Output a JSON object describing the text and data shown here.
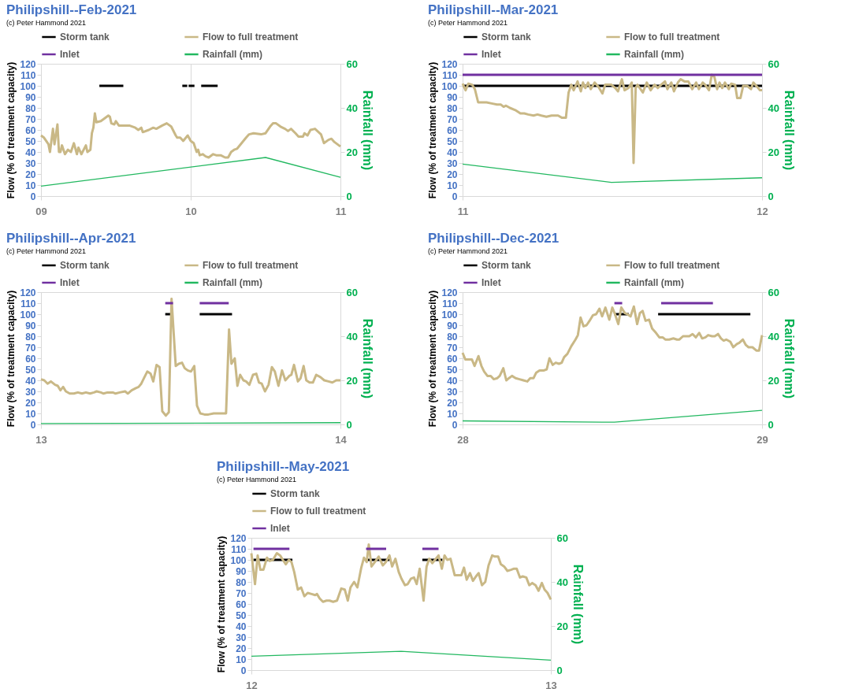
{
  "chart_data": [
    {
      "type": "line",
      "title": "Philipshill--Feb-2021",
      "annotations": [
        "(c) Peter Hammond 2021"
      ],
      "ylabel": "Flow (% of treatment capacity)",
      "y2label": "Rainfall (mm)",
      "xlim": [
        9,
        11
      ],
      "xticks": [
        {
          "value": 9,
          "label": "09"
        },
        10,
        11
      ],
      "ylim": [
        0,
        120
      ],
      "yticks": [
        0,
        10,
        20,
        30,
        40,
        50,
        60,
        70,
        80,
        90,
        100,
        110,
        120
      ],
      "y2lim": [
        0,
        60
      ],
      "y2ticks": [
        0,
        20,
        40,
        60
      ],
      "grid": "x",
      "legend": "top",
      "series": [
        {
          "name": "Storm tank",
          "color": "#000000",
          "x": [
            9.39,
            9.55,
            9.7,
            9.944,
            9.977,
            9.98,
            9.986,
            10.025,
            10.05,
            10.07,
            10.18
          ],
          "values": [
            100,
            100,
            null,
            100,
            100,
            null,
            100,
            100,
            null,
            100,
            100
          ]
        },
        {
          "name": "Flow to full treatment",
          "color": "#c9b886",
          "x": [
            9.0,
            9.02,
            9.05,
            9.06,
            9.08,
            9.09,
            9.11,
            9.12,
            9.13,
            9.14,
            9.16,
            9.18,
            9.2,
            9.22,
            9.24,
            9.25,
            9.27,
            9.3,
            9.31,
            9.33,
            9.34,
            9.35,
            9.36,
            9.37,
            9.4,
            9.42,
            9.45,
            9.46,
            9.47,
            9.49,
            9.5,
            9.52,
            9.56,
            9.59,
            9.63,
            9.65,
            9.67,
            9.68,
            9.72,
            9.75,
            9.77,
            9.81,
            9.84,
            9.87,
            9.9,
            9.91,
            9.93,
            9.95,
            9.98,
            10.0,
            10.02,
            10.03,
            10.04,
            10.05,
            10.06,
            10.08,
            10.1,
            10.12,
            10.15,
            10.17,
            10.2,
            10.23,
            10.25,
            10.27,
            10.29,
            10.31,
            10.34,
            10.37,
            10.39,
            10.42,
            10.47,
            10.5,
            10.53,
            10.55,
            10.57,
            10.6,
            10.63,
            10.65,
            10.67,
            10.7,
            10.72,
            10.75,
            10.76,
            10.78,
            10.8,
            10.83,
            10.87,
            10.89,
            10.92,
            10.94,
            10.96,
            10.99,
            11.0
          ],
          "values": [
            55,
            53,
            47,
            40,
            61,
            47,
            65,
            40,
            40,
            46,
            38,
            42,
            40,
            48,
            38,
            44,
            38,
            46,
            40,
            42,
            57,
            62,
            75,
            67,
            68,
            70,
            73,
            72,
            66,
            65,
            68,
            64,
            64,
            64,
            62,
            60,
            62,
            58,
            60,
            62,
            61,
            64,
            66,
            63,
            55,
            53,
            53,
            50,
            55,
            50,
            48,
            44,
            40,
            42,
            37,
            38,
            36,
            35,
            38,
            37,
            37,
            35,
            35,
            40,
            42,
            43,
            48,
            53,
            56,
            57,
            56,
            57,
            63,
            66,
            66,
            63,
            61,
            59,
            61,
            57,
            54,
            54,
            57,
            55,
            60,
            61,
            56,
            48,
            51,
            52,
            49,
            46,
            45
          ]
        },
        {
          "name": "Inlet",
          "color": "#7030a0"
        },
        {
          "name": "Rainfall (mm)",
          "color": "#22b860",
          "axis": "y2",
          "x": [
            9,
            10.5,
            11
          ],
          "values": [
            4.5,
            17.5,
            8.5
          ]
        }
      ]
    },
    {
      "type": "line",
      "title": "Philipshill--Mar-2021",
      "annotations": [
        "(c) Peter Hammond 2021"
      ],
      "ylabel": "Flow (% of treatment capacity)",
      "y2label": "Rainfall (mm)",
      "xlim": [
        11,
        12
      ],
      "xticks": [
        11,
        12
      ],
      "ylim": [
        0,
        120
      ],
      "yticks": [
        0,
        10,
        20,
        30,
        40,
        50,
        60,
        70,
        80,
        90,
        100,
        110,
        120
      ],
      "y2lim": [
        0,
        60
      ],
      "y2ticks": [
        0,
        20,
        40,
        60
      ],
      "legend": "top",
      "series": [
        {
          "name": "Storm tank",
          "color": "#000000",
          "x": [
            11,
            12
          ],
          "values": [
            100,
            100
          ]
        },
        {
          "name": "Flow to full treatment",
          "color": "#c9b886",
          "x": [
            11.0,
            11.01,
            11.019,
            11.032,
            11.041,
            11.052,
            11.063,
            11.08,
            11.097,
            11.115,
            11.128,
            11.137,
            11.145,
            11.158,
            11.176,
            11.193,
            11.206,
            11.219,
            11.237,
            11.25,
            11.263,
            11.28,
            11.297,
            11.319,
            11.332,
            11.345,
            11.354,
            11.363,
            11.371,
            11.384,
            11.395,
            11.402,
            11.41,
            11.419,
            11.428,
            11.441,
            11.454,
            11.467,
            11.476,
            11.497,
            11.51,
            11.519,
            11.532,
            11.541,
            11.554,
            11.565,
            11.571,
            11.578,
            11.584,
            11.602,
            11.615,
            11.628,
            11.641,
            11.652,
            11.663,
            11.676,
            11.684,
            11.697,
            11.706,
            11.719,
            11.728,
            11.741,
            11.754,
            11.767,
            11.78,
            11.789,
            11.802,
            11.81,
            11.823,
            11.832,
            11.841,
            11.85,
            11.858,
            11.867,
            11.876,
            11.889,
            11.897,
            11.91,
            11.917,
            11.928,
            11.937,
            11.95,
            11.963,
            11.971,
            11.984,
            11.993,
            12.0
          ],
          "values": [
            102,
            96,
            102,
            101,
            97,
            85,
            85,
            85,
            84,
            83,
            83,
            81,
            82,
            80,
            78,
            75,
            75,
            74,
            73,
            74,
            73,
            72,
            73,
            73,
            71,
            71,
            94,
            101,
            96,
            104,
            95,
            103,
            98,
            103,
            97,
            103,
            99,
            93,
            101,
            101,
            98,
            95,
            106,
            96,
            98,
            103,
            30,
            98,
            101,
            94,
            103,
            96,
            101,
            98,
            101,
            104,
            97,
            103,
            95,
            103,
            106,
            104,
            104,
            97,
            103,
            97,
            103,
            101,
            96,
            110,
            108,
            97,
            103,
            98,
            103,
            97,
            102,
            101,
            89,
            89,
            100,
            100,
            97,
            103,
            99,
            96,
            96
          ]
        },
        {
          "name": "Inlet",
          "color": "#7030a0",
          "x": [
            11,
            12
          ],
          "values": [
            110,
            110
          ]
        },
        {
          "name": "Rainfall (mm)",
          "color": "#22b860",
          "axis": "y2",
          "x": [
            11,
            11.497,
            12
          ],
          "values": [
            14.5,
            6.2,
            8.3
          ]
        }
      ]
    },
    {
      "type": "line",
      "title": "Philipshill--Apr-2021",
      "annotations": [
        "(c) Peter Hammond 2021"
      ],
      "ylabel": "Flow (% of treatment capacity)",
      "y2label": "Rainfall (mm)",
      "xlim": [
        13,
        14
      ],
      "xticks": [
        13,
        14
      ],
      "ylim": [
        0,
        120
      ],
      "yticks": [
        0,
        10,
        20,
        30,
        40,
        50,
        60,
        70,
        80,
        90,
        100,
        110,
        120
      ],
      "y2lim": [
        0,
        60
      ],
      "y2ticks": [
        0,
        20,
        40,
        60
      ],
      "legend": "top",
      "series": [
        {
          "name": "Storm tank",
          "color": "#000000",
          "x": [
            13.415,
            13.441,
            13.5,
            13.53,
            13.638
          ],
          "values": [
            100,
            100,
            null,
            100,
            100
          ]
        },
        {
          "name": "Flow to full treatment",
          "color": "#c9b886",
          "x": [
            13.0,
            13.011,
            13.022,
            13.033,
            13.047,
            13.056,
            13.065,
            13.074,
            13.083,
            13.096,
            13.11,
            13.123,
            13.137,
            13.15,
            13.164,
            13.177,
            13.186,
            13.2,
            13.209,
            13.222,
            13.24,
            13.249,
            13.263,
            13.281,
            13.29,
            13.303,
            13.317,
            13.326,
            13.335,
            13.344,
            13.355,
            13.366,
            13.375,
            13.386,
            13.396,
            13.405,
            13.417,
            13.427,
            13.436,
            13.45,
            13.46,
            13.471,
            13.48,
            13.49,
            13.501,
            13.512,
            13.521,
            13.532,
            13.546,
            13.559,
            13.577,
            13.595,
            13.618,
            13.628,
            13.636,
            13.647,
            13.656,
            13.665,
            13.676,
            13.685,
            13.696,
            13.708,
            13.719,
            13.728,
            13.737,
            13.748,
            13.76,
            13.771,
            13.781,
            13.793,
            13.805,
            13.816,
            13.829,
            13.836,
            13.845,
            13.858,
            13.867,
            13.877,
            13.886,
            13.897,
            13.908,
            13.919,
            13.933,
            13.946,
            13.96,
            13.973,
            13.986,
            14.0
          ],
          "values": [
            41,
            40,
            37,
            39,
            36,
            35,
            31,
            34,
            30,
            28,
            28,
            29,
            28,
            29,
            28,
            29,
            30,
            29,
            28,
            29,
            29,
            28,
            29,
            30,
            28,
            31,
            33,
            34,
            37,
            42,
            48,
            46,
            39,
            54,
            52,
            12,
            8,
            11,
            114,
            53,
            55,
            56,
            51,
            49,
            48,
            53,
            17,
            10,
            9,
            9,
            10,
            10,
            10,
            86,
            55,
            60,
            35,
            45,
            40,
            39,
            36,
            45,
            46,
            38,
            37,
            30,
            36,
            52,
            48,
            35,
            49,
            40,
            44,
            45,
            54,
            39,
            42,
            53,
            40,
            38,
            38,
            45,
            43,
            40,
            39,
            38,
            40,
            40
          ]
        },
        {
          "name": "Inlet",
          "color": "#7030a0",
          "x": [
            13.415,
            13.441,
            13.5,
            13.53,
            13.627
          ],
          "values": [
            110,
            110,
            null,
            110,
            110
          ]
        },
        {
          "name": "Rainfall (mm)",
          "color": "#22b860",
          "axis": "y2",
          "x": [
            13,
            14
          ],
          "values": [
            0.4,
            0.8
          ]
        }
      ]
    },
    {
      "type": "line",
      "title": "Philipshill--Dec-2021",
      "annotations": [
        "(c) Peter Hammond 2021"
      ],
      "ylabel": "Flow (% of treatment capacity)",
      "y2label": "Rainfall (mm)",
      "xlim": [
        28,
        29
      ],
      "xticks": [
        28,
        29
      ],
      "ylim": [
        0,
        120
      ],
      "yticks": [
        0,
        10,
        20,
        30,
        40,
        50,
        60,
        70,
        80,
        90,
        100,
        110,
        120
      ],
      "y2lim": [
        0,
        60
      ],
      "y2ticks": [
        0,
        20,
        40,
        60
      ],
      "legend": "top",
      "series": [
        {
          "name": "Storm tank",
          "color": "#000000",
          "x": [
            28.507,
            28.555,
            28.6,
            28.653,
            28.961
          ],
          "values": [
            100,
            100,
            null,
            100,
            100
          ]
        },
        {
          "name": "Flow to full treatment",
          "color": "#c9b886",
          "x": [
            28.0,
            28.009,
            28.02,
            28.031,
            28.04,
            28.053,
            28.063,
            28.072,
            28.083,
            28.094,
            28.104,
            28.116,
            28.124,
            28.136,
            28.146,
            28.155,
            28.165,
            28.177,
            28.19,
            28.203,
            28.216,
            28.226,
            28.237,
            28.246,
            28.257,
            28.272,
            28.281,
            28.29,
            28.301,
            28.311,
            28.322,
            28.331,
            28.339,
            28.35,
            28.363,
            28.377,
            28.385,
            28.394,
            28.404,
            28.414,
            28.424,
            28.435,
            28.446,
            28.457,
            28.466,
            28.477,
            28.49,
            28.5,
            28.509,
            28.52,
            28.53,
            28.542,
            28.55,
            28.561,
            28.572,
            28.583,
            28.592,
            28.601,
            28.611,
            28.623,
            28.633,
            28.646,
            28.657,
            28.668,
            28.677,
            28.69,
            28.704,
            28.716,
            28.724,
            28.736,
            28.744,
            28.757,
            28.768,
            28.779,
            28.79,
            28.8,
            28.811,
            28.82,
            28.833,
            28.842,
            28.853,
            28.863,
            28.872,
            28.881,
            28.894,
            28.904,
            28.916,
            28.924,
            28.936,
            28.946,
            28.955,
            28.968,
            28.981,
            28.99,
            29.0
          ],
          "values": [
            65,
            59,
            59,
            59,
            53,
            62,
            53,
            48,
            44,
            44,
            41,
            42,
            44,
            51,
            40,
            42,
            44,
            42,
            41,
            40,
            39,
            42,
            42,
            47,
            49,
            49,
            50,
            60,
            54,
            56,
            55,
            56,
            61,
            64,
            71,
            77,
            81,
            97,
            89,
            90,
            94,
            99,
            100,
            105,
            98,
            106,
            95,
            106,
            100,
            91,
            106,
            101,
            100,
            98,
            107,
            91,
            101,
            103,
            94,
            95,
            87,
            83,
            79,
            79,
            77,
            77,
            78,
            77,
            77,
            80,
            80,
            80,
            82,
            79,
            83,
            78,
            79,
            81,
            80,
            80,
            82,
            78,
            76,
            77,
            75,
            70,
            73,
            74,
            77,
            72,
            70,
            70,
            67,
            67,
            81
          ]
        },
        {
          "name": "Inlet",
          "color": "#7030a0",
          "x": [
            28.507,
            28.533,
            28.6,
            28.663,
            28.836
          ],
          "values": [
            110,
            110,
            null,
            110,
            110
          ]
        },
        {
          "name": "Rainfall (mm)",
          "color": "#22b860",
          "axis": "y2",
          "x": [
            28,
            28.507,
            29
          ],
          "values": [
            1.6,
            1.0,
            6.4
          ]
        }
      ]
    },
    {
      "type": "line",
      "title": "Philipshill--May-2021",
      "annotations": [
        "(c) Peter Hammond 2021"
      ],
      "ylabel": "Flow (% of treatment capacity)",
      "y2label": "Rainfall (mm)",
      "xlim": [
        12,
        13
      ],
      "xticks": [
        12,
        13
      ],
      "ylim": [
        0,
        120
      ],
      "yticks": [
        0,
        10,
        20,
        30,
        40,
        50,
        60,
        70,
        80,
        90,
        100,
        110,
        120
      ],
      "y2lim": [
        0,
        60
      ],
      "y2ticks": [
        0,
        20,
        40,
        60
      ],
      "legend": "top",
      "series": [
        {
          "name": "Storm tank",
          "color": "#000000",
          "x": [
            12.007,
            12.137,
            12.2,
            12.383,
            12.461,
            12.5,
            12.571,
            12.638
          ],
          "values": [
            100,
            100,
            null,
            100,
            100,
            null,
            100,
            100
          ]
        },
        {
          "name": "Flow to full treatment",
          "color": "#c9b886",
          "x": [
            12.0,
            12.007,
            12.012,
            12.021,
            12.03,
            12.04,
            12.052,
            12.061,
            12.072,
            12.085,
            12.096,
            12.105,
            12.115,
            12.125,
            12.134,
            12.143,
            12.155,
            12.166,
            12.177,
            12.188,
            12.201,
            12.213,
            12.219,
            12.228,
            12.239,
            12.251,
            12.261,
            12.273,
            12.286,
            12.3,
            12.312,
            12.322,
            12.331,
            12.343,
            12.354,
            12.367,
            12.376,
            12.385,
            12.392,
            12.401,
            12.412,
            12.425,
            12.439,
            12.449,
            12.461,
            12.47,
            12.481,
            12.492,
            12.501,
            12.513,
            12.522,
            12.533,
            12.543,
            12.552,
            12.562,
            12.575,
            12.585,
            12.594,
            12.604,
            12.613,
            12.625,
            12.636,
            12.645,
            12.654,
            12.665,
            12.679,
            12.689,
            12.701,
            12.71,
            12.719,
            12.73,
            12.74,
            12.75,
            12.759,
            12.77,
            12.781,
            12.792,
            12.804,
            12.813,
            12.824,
            12.833,
            12.844,
            12.855,
            12.867,
            12.877,
            12.886,
            12.897,
            12.906,
            12.918,
            12.928,
            12.938,
            12.949,
            12.959,
            12.97,
            12.979,
            12.989,
            13.0
          ],
          "values": [
            106,
            90,
            78,
            104,
            91,
            91,
            102,
            99,
            100,
            106,
            104,
            100,
            96,
            100,
            98,
            89,
            73,
            75,
            67,
            70,
            69,
            68,
            69,
            65,
            62,
            63,
            63,
            62,
            63,
            74,
            73,
            63,
            75,
            80,
            75,
            93,
            102,
            98,
            114,
            94,
            98,
            103,
            95,
            98,
            104,
            94,
            101,
            89,
            83,
            77,
            78,
            83,
            84,
            78,
            92,
            63,
            94,
            101,
            97,
            100,
            104,
            92,
            104,
            100,
            101,
            86,
            86,
            86,
            93,
            82,
            88,
            81,
            85,
            88,
            77,
            80,
            95,
            104,
            103,
            103,
            96,
            94,
            90,
            91,
            92,
            92,
            84,
            85,
            84,
            77,
            79,
            77,
            72,
            79,
            73,
            70,
            64
          ]
        },
        {
          "name": "Inlet",
          "color": "#7030a0",
          "x": [
            12.007,
            12.127,
            12.2,
            12.383,
            12.45,
            12.5,
            12.571,
            12.625
          ],
          "values": [
            110,
            110,
            null,
            110,
            110,
            null,
            110,
            110
          ]
        },
        {
          "color": "#22b860",
          "axis": "y2",
          "x": [
            12,
            12.5,
            13
          ],
          "values": [
            6.3,
            8.5,
            4.5
          ]
        }
      ]
    }
  ]
}
